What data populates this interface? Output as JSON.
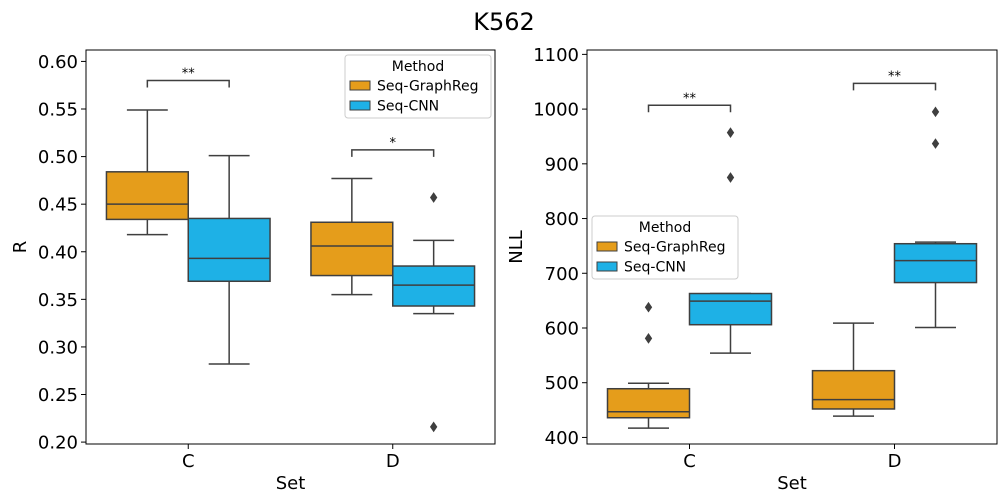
{
  "figure": {
    "title": "K562"
  },
  "legend_title": "Method",
  "colors": {
    "Seq-GraphReg": "#E59D1B",
    "Seq-CNN": "#1EB1E6",
    "edge": "#3F3F3F"
  },
  "chart_data": [
    {
      "type": "box",
      "xlabel": "Set",
      "ylabel": "R",
      "ylim": [
        0.198,
        0.612
      ],
      "yticks": [
        "0.20",
        "0.25",
        "0.30",
        "0.35",
        "0.40",
        "0.45",
        "0.50",
        "0.55",
        "0.60"
      ],
      "categories": [
        "C",
        "D"
      ],
      "legend": {
        "title": "Method",
        "position": "upper right"
      },
      "series": [
        {
          "name": "Seq-GraphReg",
          "boxes": [
            {
              "whisker_low": 0.418,
              "q1": 0.434,
              "median": 0.45,
              "q3": 0.484,
              "whisker_high": 0.549,
              "outliers": []
            },
            {
              "whisker_low": 0.355,
              "q1": 0.375,
              "median": 0.406,
              "q3": 0.431,
              "whisker_high": 0.477,
              "outliers": []
            }
          ]
        },
        {
          "name": "Seq-CNN",
          "boxes": [
            {
              "whisker_low": 0.282,
              "q1": 0.369,
              "median": 0.393,
              "q3": 0.435,
              "whisker_high": 0.501,
              "outliers": []
            },
            {
              "whisker_low": 0.335,
              "q1": 0.343,
              "median": 0.365,
              "q3": 0.385,
              "whisker_high": 0.412,
              "outliers": [
                0.457,
                0.216
              ]
            }
          ]
        }
      ],
      "annotations": [
        {
          "category": "C",
          "label": "**",
          "y": 0.58
        },
        {
          "category": "D",
          "label": "*",
          "y": 0.507
        }
      ]
    },
    {
      "type": "box",
      "xlabel": "Set",
      "ylabel": "NLL",
      "ylim": [
        388,
        1108
      ],
      "yticks": [
        "400",
        "500",
        "600",
        "700",
        "800",
        "900",
        "1000",
        "1100"
      ],
      "categories": [
        "C",
        "D"
      ],
      "legend": {
        "title": "Method",
        "position": "center left"
      },
      "series": [
        {
          "name": "Seq-GraphReg",
          "boxes": [
            {
              "whisker_low": 417,
              "q1": 436,
              "median": 447,
              "q3": 489,
              "whisker_high": 499,
              "outliers": [
                638,
                581
              ]
            },
            {
              "whisker_low": 439,
              "q1": 452,
              "median": 469,
              "q3": 522,
              "whisker_high": 609,
              "outliers": []
            }
          ]
        },
        {
          "name": "Seq-CNN",
          "boxes": [
            {
              "whisker_low": 554,
              "q1": 606,
              "median": 649,
              "q3": 663,
              "whisker_high": 663,
              "outliers": [
                957,
                875
              ]
            },
            {
              "whisker_low": 601,
              "q1": 683,
              "median": 723,
              "q3": 754,
              "whisker_high": 757,
              "outliers": [
                995,
                937
              ]
            }
          ]
        }
      ],
      "annotations": [
        {
          "category": "C",
          "label": "**",
          "y": 1007
        },
        {
          "category": "D",
          "label": "**",
          "y": 1047
        }
      ]
    }
  ]
}
